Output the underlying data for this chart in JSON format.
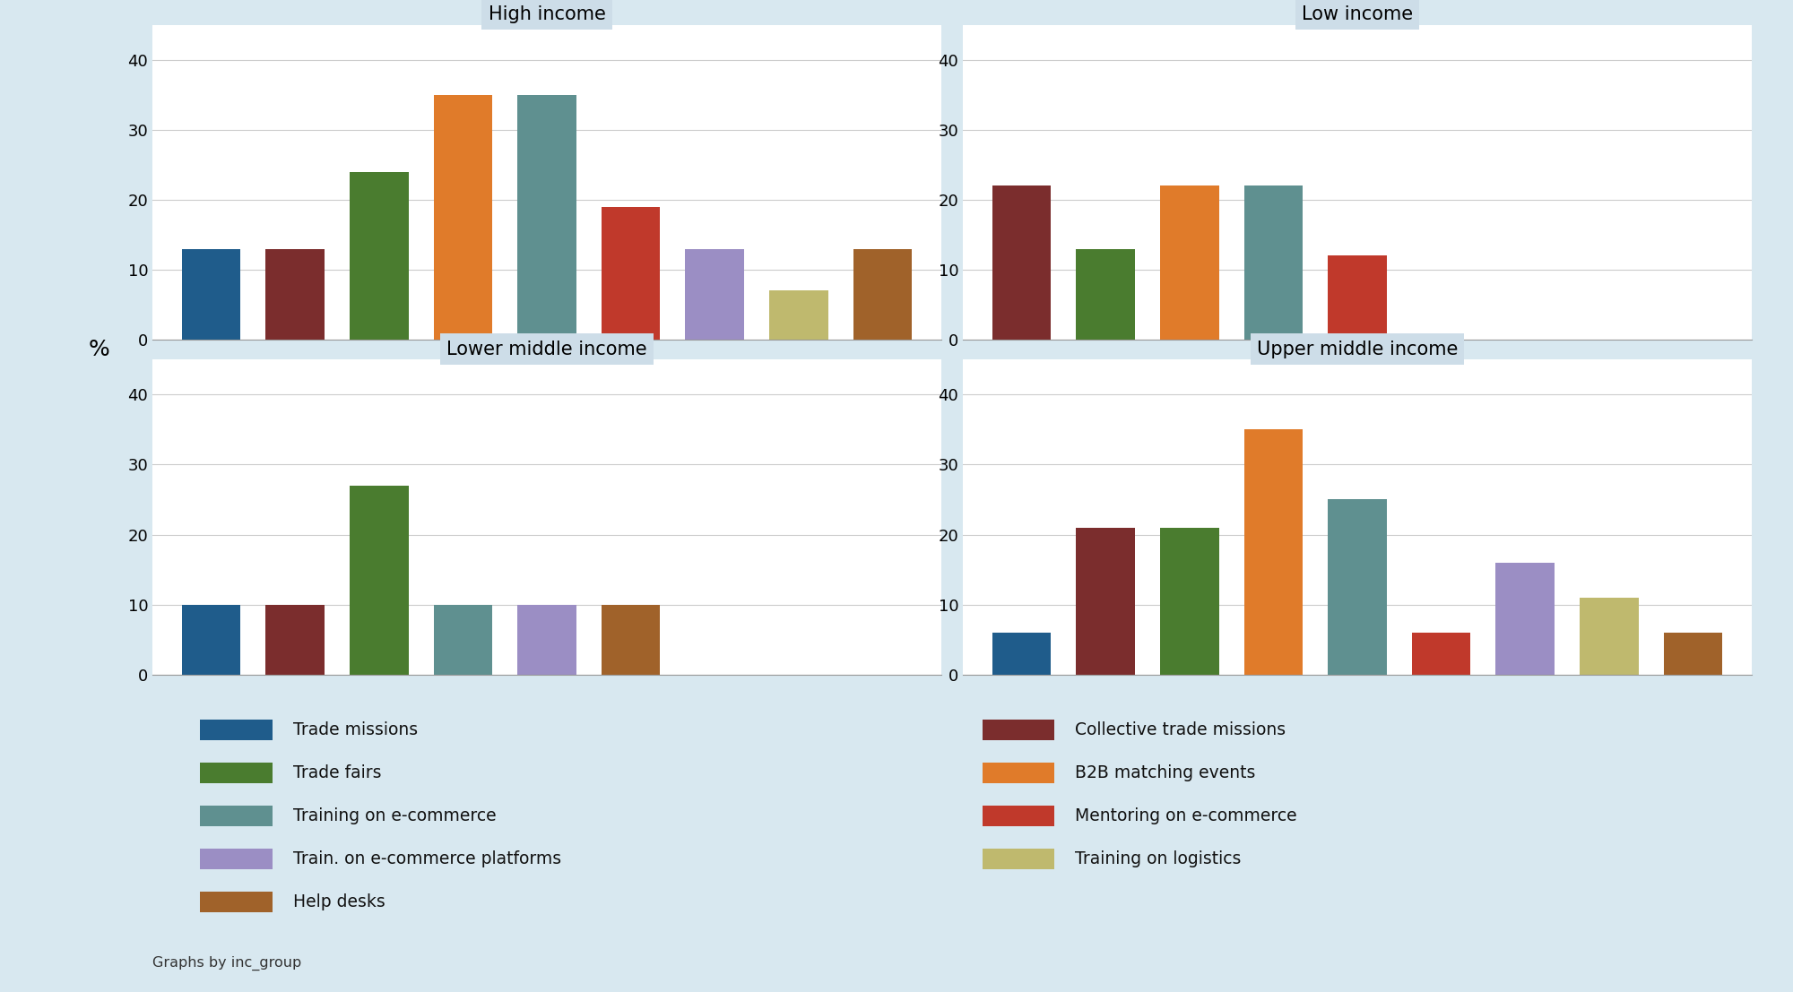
{
  "panels": [
    {
      "title": "High income",
      "bars": [
        {
          "label": "Trade missions",
          "value": 13,
          "color": "#1f5c8b"
        },
        {
          "label": "Collective trade missions",
          "value": 13,
          "color": "#7b2d2d"
        },
        {
          "label": "Trade fairs",
          "value": 24,
          "color": "#4a7c2f"
        },
        {
          "label": "B2B matching events",
          "value": 35,
          "color": "#e07b2a"
        },
        {
          "label": "Training on e-commerce",
          "value": 35,
          "color": "#5f9090"
        },
        {
          "label": "Mentoring on e-commerce",
          "value": 19,
          "color": "#c0392b"
        },
        {
          "label": "Train. on e-commerce platforms",
          "value": 13,
          "color": "#9b8ec4"
        },
        {
          "label": "Training on logistics",
          "value": 7,
          "color": "#bfb96e"
        },
        {
          "label": "Help desks",
          "value": 13,
          "color": "#a0622a"
        }
      ]
    },
    {
      "title": "Low income",
      "bars": [
        {
          "label": "Collective trade missions",
          "value": 22,
          "color": "#7b2d2d"
        },
        {
          "label": "Trade fairs",
          "value": 13,
          "color": "#4a7c2f"
        },
        {
          "label": "B2B matching events",
          "value": 22,
          "color": "#e07b2a"
        },
        {
          "label": "Training on e-commerce",
          "value": 22,
          "color": "#5f9090"
        },
        {
          "label": "Mentoring on e-commerce",
          "value": 12,
          "color": "#c0392b"
        }
      ]
    },
    {
      "title": "Lower middle income",
      "bars": [
        {
          "label": "Trade missions",
          "value": 10,
          "color": "#1f5c8b"
        },
        {
          "label": "Collective trade missions",
          "value": 10,
          "color": "#7b2d2d"
        },
        {
          "label": "Trade fairs",
          "value": 27,
          "color": "#4a7c2f"
        },
        {
          "label": "Training on e-commerce",
          "value": 10,
          "color": "#5f9090"
        },
        {
          "label": "Train. on e-commerce platforms",
          "value": 10,
          "color": "#9b8ec4"
        },
        {
          "label": "Help desks",
          "value": 10,
          "color": "#a0622a"
        }
      ]
    },
    {
      "title": "Upper middle income",
      "bars": [
        {
          "label": "Trade missions",
          "value": 6,
          "color": "#1f5c8b"
        },
        {
          "label": "Collective trade missions",
          "value": 21,
          "color": "#7b2d2d"
        },
        {
          "label": "Trade fairs",
          "value": 21,
          "color": "#4a7c2f"
        },
        {
          "label": "B2B matching events",
          "value": 35,
          "color": "#e07b2a"
        },
        {
          "label": "Training on e-commerce",
          "value": 25,
          "color": "#5f9090"
        },
        {
          "label": "Mentoring on e-commerce",
          "value": 6,
          "color": "#c0392b"
        },
        {
          "label": "Train. on e-commerce platforms",
          "value": 16,
          "color": "#9b8ec4"
        },
        {
          "label": "Training on logistics",
          "value": 11,
          "color": "#bfb96e"
        },
        {
          "label": "Help desks",
          "value": 6,
          "color": "#a0622a"
        }
      ]
    }
  ],
  "legend_items": [
    {
      "label": "Trade missions",
      "color": "#1f5c8b"
    },
    {
      "label": "Trade fairs",
      "color": "#4a7c2f"
    },
    {
      "label": "Training on e-commerce",
      "color": "#5f9090"
    },
    {
      "label": "Train. on e-commerce platforms",
      "color": "#9b8ec4"
    },
    {
      "label": "Help desks",
      "color": "#a0622a"
    },
    {
      "label": "Collective trade missions",
      "color": "#7b2d2d"
    },
    {
      "label": "B2B matching events",
      "color": "#e07b2a"
    },
    {
      "label": "Mentoring on e-commerce",
      "color": "#c0392b"
    },
    {
      "label": "Training on logistics",
      "color": "#bfb96e"
    }
  ],
  "ylabel": "%",
  "ylim": [
    0,
    45
  ],
  "yticks": [
    0,
    10,
    20,
    30,
    40
  ],
  "background_color": "#d8e8f0",
  "panel_bg_color": "#ffffff",
  "title_bg_color": "#cddde8",
  "footer_text": "Graphs by inc_group",
  "bar_width": 0.7
}
